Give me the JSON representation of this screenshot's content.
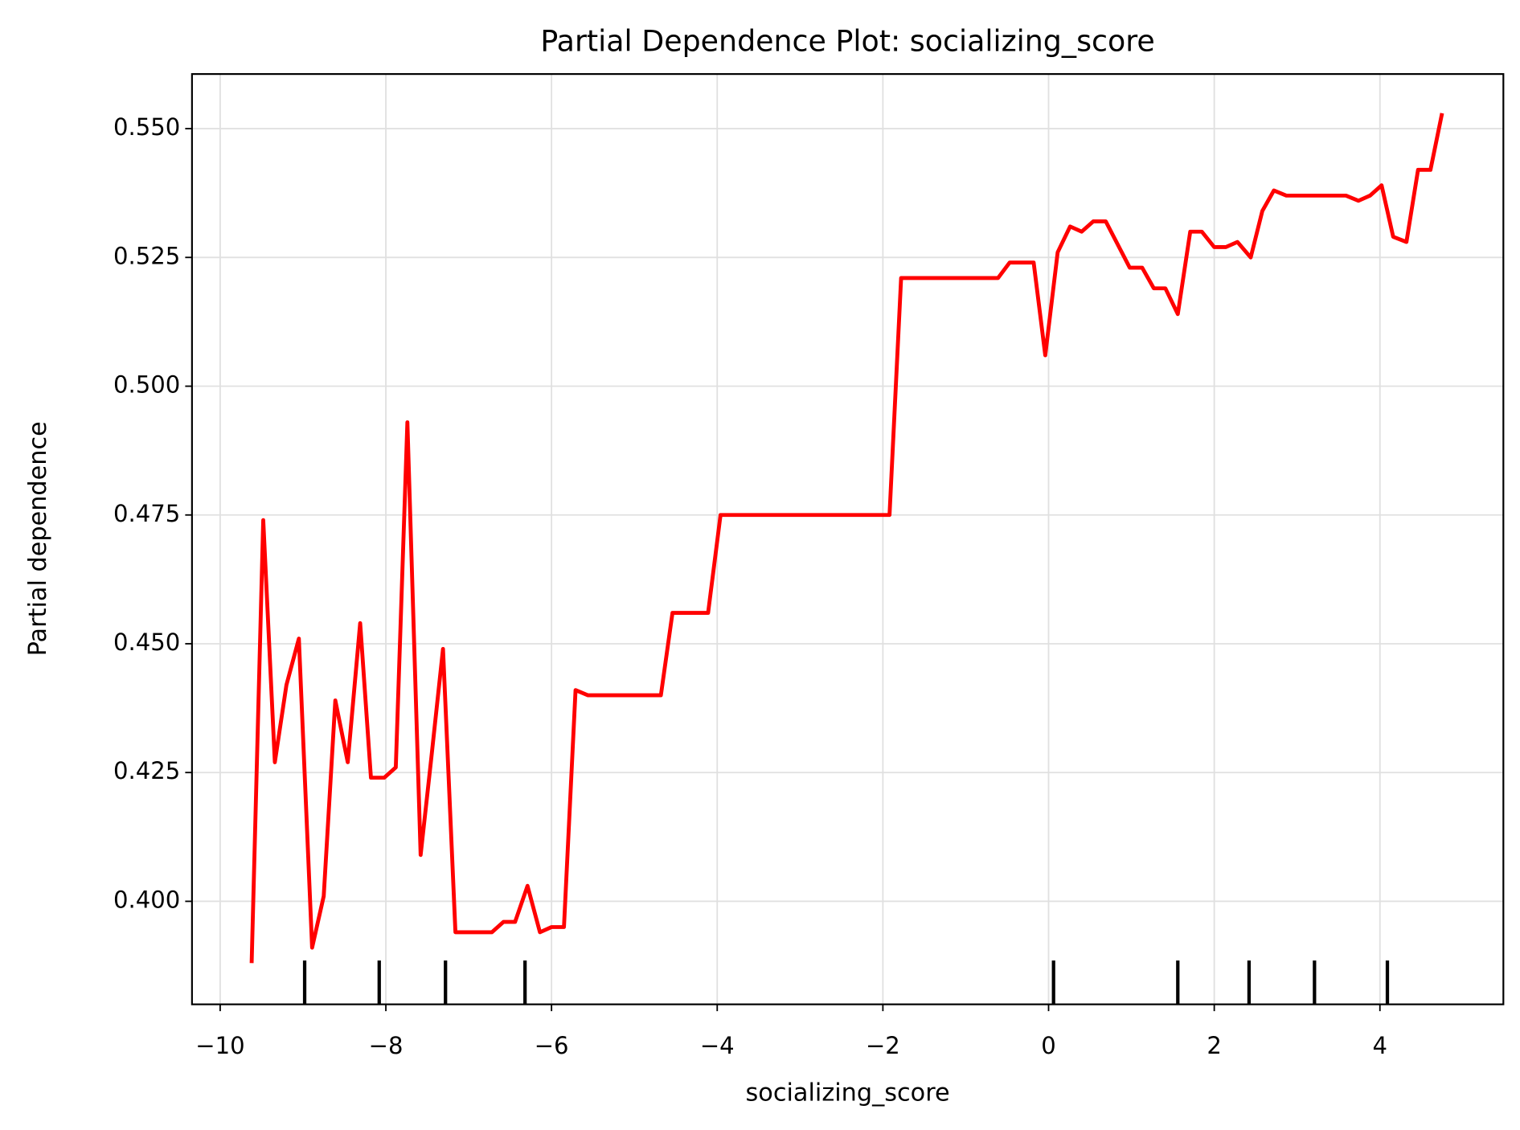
{
  "chart_data": {
    "type": "line",
    "title": "Partial Dependence Plot: socializing_score",
    "x_label": "socializing_score",
    "y_label": "Partial dependence",
    "x": [
      -9.62,
      -9.48,
      -9.34,
      -9.2,
      -9.05,
      -8.89,
      -8.75,
      -8.61,
      -8.46,
      -8.31,
      -8.18,
      -8.02,
      -7.88,
      -7.74,
      -7.58,
      -7.45,
      -7.31,
      -7.16,
      -7.01,
      -6.72,
      -6.58,
      -6.44,
      -6.29,
      -6.14,
      -6.0,
      -5.85,
      -5.71,
      -5.56,
      -5.41,
      -4.68,
      -4.54,
      -4.11,
      -3.96,
      -1.92,
      -1.78,
      -0.61,
      -0.47,
      -0.18,
      -0.04,
      0.11,
      0.26,
      0.4,
      0.54,
      0.69,
      0.98,
      1.13,
      1.27,
      1.41,
      1.56,
      1.71,
      1.85,
      2.0,
      2.14,
      2.28,
      2.44,
      2.58,
      2.72,
      2.87,
      3.01,
      3.59,
      3.74,
      3.88,
      4.02,
      4.16,
      4.32,
      4.46,
      4.61,
      4.75
    ],
    "series": [
      {
        "name": "socializing_score",
        "color": "#ff0000",
        "values": [
          0.388,
          0.474,
          0.427,
          0.442,
          0.451,
          0.391,
          0.401,
          0.439,
          0.427,
          0.454,
          0.424,
          0.424,
          0.426,
          0.493,
          0.409,
          0.428,
          0.449,
          0.394,
          0.394,
          0.394,
          0.396,
          0.396,
          0.403,
          0.394,
          0.395,
          0.395,
          0.441,
          0.44,
          0.44,
          0.44,
          0.456,
          0.456,
          0.475,
          0.475,
          0.521,
          0.521,
          0.524,
          0.524,
          0.506,
          0.526,
          0.531,
          0.53,
          0.532,
          0.532,
          0.523,
          0.523,
          0.519,
          0.519,
          0.514,
          0.53,
          0.53,
          0.527,
          0.527,
          0.528,
          0.525,
          0.534,
          0.538,
          0.537,
          0.537,
          0.537,
          0.536,
          0.537,
          0.539,
          0.529,
          0.528,
          0.542,
          0.542,
          0.553
        ]
      }
    ],
    "deciles": [
      -8.98,
      -8.08,
      -7.28,
      -6.32,
      0.06,
      1.56,
      2.42,
      3.21,
      4.09
    ],
    "xlim": [
      -10.34,
      5.49
    ],
    "ylim": [
      0.38,
      0.5606
    ],
    "xticks": [
      {
        "value": -10,
        "label": "−10"
      },
      {
        "value": -8,
        "label": "−8"
      },
      {
        "value": -6,
        "label": "−6"
      },
      {
        "value": -4,
        "label": "−4"
      },
      {
        "value": -2,
        "label": "−2"
      },
      0,
      2,
      4
    ],
    "yticks": [
      {
        "value": 0.4,
        "label": "0.400"
      },
      {
        "value": 0.425,
        "label": "0.425"
      },
      {
        "value": 0.45,
        "label": "0.450"
      },
      {
        "value": 0.475,
        "label": "0.475"
      },
      {
        "value": 0.5,
        "label": "0.500"
      },
      {
        "value": 0.525,
        "label": "0.525"
      },
      {
        "value": 0.55,
        "label": "0.550"
      }
    ],
    "grid": true
  }
}
